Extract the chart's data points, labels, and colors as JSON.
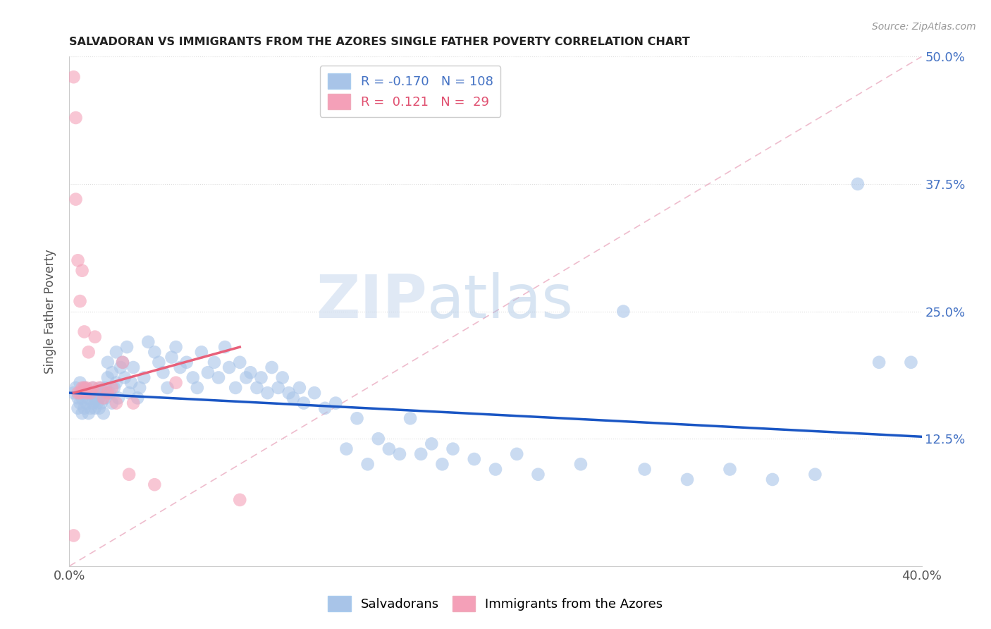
{
  "title": "SALVADORAN VS IMMIGRANTS FROM THE AZORES SINGLE FATHER POVERTY CORRELATION CHART",
  "source": "Source: ZipAtlas.com",
  "ylabel": "Single Father Poverty",
  "blue_R": -0.17,
  "blue_N": 108,
  "pink_R": 0.121,
  "pink_N": 29,
  "blue_color": "#a8c4e8",
  "pink_color": "#f4a0b8",
  "blue_line_color": "#1a56c4",
  "pink_line_color": "#e8607a",
  "ref_line_color": "#ddbbcc",
  "bg_color": "#ffffff",
  "grid_color": "#dddddd",
  "xlim": [
    0.0,
    0.4
  ],
  "ylim": [
    0.0,
    0.5
  ],
  "yticks": [
    0.0,
    0.125,
    0.25,
    0.375,
    0.5
  ],
  "xticks": [
    0.0,
    0.05,
    0.1,
    0.15,
    0.2,
    0.25,
    0.3,
    0.35,
    0.4
  ],
  "watermark_zip": "ZIP",
  "watermark_atlas": "atlas",
  "legend_label_blue": "Salvadorans",
  "legend_label_pink": "Immigrants from the Azores",
  "blue_line_start_y": 0.17,
  "blue_line_end_y": 0.127,
  "pink_line_start_x": 0.002,
  "pink_line_start_y": 0.17,
  "pink_line_end_x": 0.08,
  "pink_line_end_y": 0.215,
  "blue_scatter_x": [
    0.002,
    0.003,
    0.004,
    0.004,
    0.005,
    0.005,
    0.006,
    0.006,
    0.007,
    0.007,
    0.008,
    0.008,
    0.009,
    0.009,
    0.01,
    0.01,
    0.011,
    0.011,
    0.012,
    0.012,
    0.013,
    0.013,
    0.014,
    0.014,
    0.015,
    0.015,
    0.016,
    0.016,
    0.017,
    0.017,
    0.018,
    0.018,
    0.019,
    0.02,
    0.02,
    0.021,
    0.022,
    0.022,
    0.023,
    0.024,
    0.025,
    0.026,
    0.027,
    0.028,
    0.029,
    0.03,
    0.032,
    0.033,
    0.035,
    0.037,
    0.04,
    0.042,
    0.044,
    0.046,
    0.048,
    0.05,
    0.052,
    0.055,
    0.058,
    0.06,
    0.062,
    0.065,
    0.068,
    0.07,
    0.073,
    0.075,
    0.078,
    0.08,
    0.083,
    0.085,
    0.088,
    0.09,
    0.093,
    0.095,
    0.098,
    0.1,
    0.103,
    0.105,
    0.108,
    0.11,
    0.115,
    0.12,
    0.125,
    0.13,
    0.135,
    0.14,
    0.145,
    0.15,
    0.155,
    0.16,
    0.165,
    0.17,
    0.175,
    0.18,
    0.19,
    0.2,
    0.21,
    0.22,
    0.24,
    0.26,
    0.27,
    0.29,
    0.31,
    0.33,
    0.35,
    0.37,
    0.38,
    0.395
  ],
  "blue_scatter_y": [
    0.17,
    0.175,
    0.165,
    0.155,
    0.16,
    0.18,
    0.165,
    0.15,
    0.155,
    0.175,
    0.16,
    0.17,
    0.15,
    0.165,
    0.17,
    0.155,
    0.16,
    0.175,
    0.165,
    0.155,
    0.17,
    0.16,
    0.165,
    0.155,
    0.175,
    0.16,
    0.17,
    0.15,
    0.165,
    0.175,
    0.2,
    0.185,
    0.17,
    0.19,
    0.16,
    0.175,
    0.21,
    0.18,
    0.165,
    0.195,
    0.2,
    0.185,
    0.215,
    0.17,
    0.18,
    0.195,
    0.165,
    0.175,
    0.185,
    0.22,
    0.21,
    0.2,
    0.19,
    0.175,
    0.205,
    0.215,
    0.195,
    0.2,
    0.185,
    0.175,
    0.21,
    0.19,
    0.2,
    0.185,
    0.215,
    0.195,
    0.175,
    0.2,
    0.185,
    0.19,
    0.175,
    0.185,
    0.17,
    0.195,
    0.175,
    0.185,
    0.17,
    0.165,
    0.175,
    0.16,
    0.17,
    0.155,
    0.16,
    0.115,
    0.145,
    0.1,
    0.125,
    0.115,
    0.11,
    0.145,
    0.11,
    0.12,
    0.1,
    0.115,
    0.105,
    0.095,
    0.11,
    0.09,
    0.1,
    0.25,
    0.095,
    0.085,
    0.095,
    0.085,
    0.09,
    0.375,
    0.2,
    0.2
  ],
  "pink_scatter_x": [
    0.002,
    0.002,
    0.003,
    0.003,
    0.004,
    0.004,
    0.005,
    0.005,
    0.006,
    0.006,
    0.007,
    0.007,
    0.008,
    0.008,
    0.009,
    0.01,
    0.011,
    0.012,
    0.014,
    0.016,
    0.018,
    0.02,
    0.022,
    0.025,
    0.028,
    0.03,
    0.04,
    0.05,
    0.08
  ],
  "pink_scatter_y": [
    0.03,
    0.48,
    0.44,
    0.36,
    0.17,
    0.3,
    0.17,
    0.26,
    0.175,
    0.29,
    0.175,
    0.23,
    0.175,
    0.17,
    0.21,
    0.17,
    0.175,
    0.225,
    0.175,
    0.165,
    0.17,
    0.175,
    0.16,
    0.2,
    0.09,
    0.16,
    0.08,
    0.18,
    0.065
  ]
}
